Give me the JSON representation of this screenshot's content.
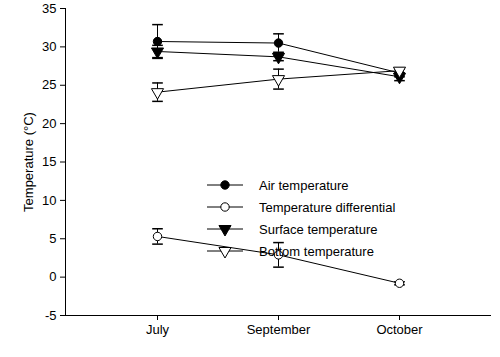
{
  "chart_data": {
    "type": "line",
    "y_label": "Temperature (°C)",
    "categories": [
      "July",
      "September",
      "October"
    ],
    "series": [
      {
        "name": "Air temperature",
        "color": "#000000",
        "marker": "circle",
        "values": [
          30.7,
          30.5,
          26.6
        ],
        "errors": [
          2.2,
          1.2,
          0.5
        ]
      },
      {
        "name": "Temperature differential",
        "color": "#000000",
        "marker": "circle-open",
        "values": [
          5.3,
          2.9,
          -0.8
        ],
        "errors": [
          1.0,
          1.6,
          0.2
        ]
      },
      {
        "name": "Surface temperature",
        "color": "#000000",
        "marker": "triangle-down",
        "values": [
          29.4,
          28.7,
          26.1
        ],
        "errors": [
          0.8,
          0.5,
          0.5
        ]
      },
      {
        "name": "Bottom temperature",
        "color": "#000000",
        "marker": "triangle-down-open",
        "values": [
          24.1,
          25.8,
          26.9
        ],
        "errors": [
          1.2,
          1.3,
          0.3
        ]
      }
    ],
    "ylim": [
      -5,
      35
    ],
    "yticks": [
      -5,
      0,
      5,
      10,
      15,
      20,
      25,
      30,
      35
    ],
    "grid": false,
    "legend": "right"
  }
}
